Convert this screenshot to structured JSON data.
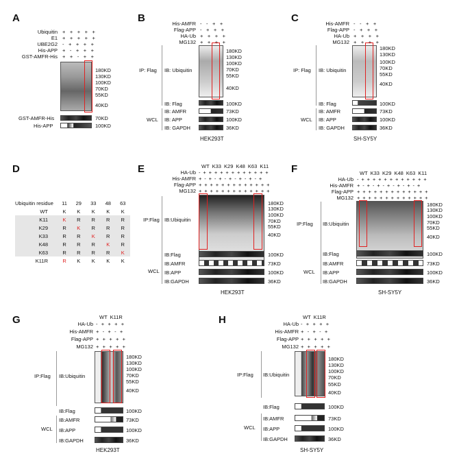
{
  "panels": {
    "A": {
      "letter": "A",
      "rows": [
        "Ubiquitin",
        "E1",
        "UBE2G2",
        "His-APP",
        "GST-AMFR-His"
      ],
      "signs": [
        "+ + + + +",
        "+ + + + +",
        "- + + + +",
        "+ - + + +",
        "+ + - + +"
      ],
      "markers": [
        "180KD",
        "130KD",
        "100KD",
        "70KD",
        "55KD",
        "40KD"
      ],
      "lower_labels": [
        "GST-AMFR-His",
        "His-APP"
      ],
      "lower_markers": [
        "70KD",
        "100KD"
      ]
    },
    "B": {
      "letter": "B",
      "rows": [
        "His-AMFR",
        "Flag-APP",
        "HA-Ub",
        "MG132"
      ],
      "signs": [
        "- - + +",
        "- + + +",
        "+ + + +",
        "+ + + +"
      ],
      "ip_label": "IP: Flag",
      "blots": [
        "IB: Ubiquitin",
        "IB: Flag",
        "IB: AMFR",
        "IB: APP",
        "IB: GAPDH"
      ],
      "wcl": "WCL",
      "markers": [
        "180KD",
        "130KD",
        "100KD",
        "70KD",
        "55KD",
        "40KD"
      ],
      "small_markers": [
        "100KD",
        "73KD",
        "100KD",
        "36KD"
      ],
      "cell": "HEK293T"
    },
    "C": {
      "letter": "C",
      "rows": [
        "His-AMFR",
        "Flag-APP",
        "HA-Ub",
        "MG132"
      ],
      "signs": [
        "- - + +",
        "- + + +",
        "+ + + +",
        "+ + + +"
      ],
      "ip_label": "IP: Flag",
      "blots": [
        "IB: Ubiquitin",
        "IB: Flag",
        "IB: AMFR",
        "IB: APP",
        "IB: GAPDH"
      ],
      "wcl": "WCL",
      "markers": [
        "180KD",
        "130KD",
        "100KD",
        "70KD",
        "55KD",
        "40KD"
      ],
      "small_markers": [
        "100KD",
        "73KD",
        "100KD",
        "36KD"
      ],
      "cell": "SH-SY5Y"
    },
    "D": {
      "letter": "D",
      "header": [
        "Ubiquitin residue",
        "11",
        "29",
        "33",
        "48",
        "63"
      ],
      "rows": [
        [
          "WT",
          "K",
          "K",
          "K",
          "K",
          "K"
        ],
        [
          "K11",
          "K",
          "R",
          "R",
          "R",
          "R"
        ],
        [
          "K29",
          "R",
          "K",
          "R",
          "R",
          "R"
        ],
        [
          "K33",
          "R",
          "R",
          "K",
          "R",
          "R"
        ],
        [
          "K48",
          "R",
          "R",
          "R",
          "K",
          "R"
        ],
        [
          "K63",
          "R",
          "R",
          "R",
          "R",
          "K"
        ],
        [
          "K11R",
          "R",
          "K",
          "K",
          "K",
          "K"
        ]
      ],
      "highlight_color": "#e02020"
    },
    "E": {
      "letter": "E",
      "top_labels": "WT K33 K29 K48 K63 K11",
      "rows": [
        "HA-Ub",
        "His-AMFR",
        "Flag-APP",
        "MG132"
      ],
      "signs": [
        "- + + + + + + + + + + + +",
        "+ - + - + - + - + - + - +",
        "+ + + + + + + + + + + + +",
        "+ + + + + + + + + + + + +"
      ],
      "ip_label": "IP:Flag",
      "blots": [
        "IB:Ubiquitin",
        "IB:Flag",
        "IB:AMFR",
        "IB:APP",
        "IB:GAPDH"
      ],
      "wcl": "WCL",
      "markers": [
        "180KD",
        "130KD",
        "100KD",
        "70KD",
        "55KD",
        "40KD"
      ],
      "small_markers": [
        "100KD",
        "73KD",
        "100KD",
        "36KD"
      ],
      "cell": "HEK293T"
    },
    "F": {
      "letter": "F",
      "top_labels": "WT K33 K29 K48 K63 K11",
      "rows": [
        "HA-Ub",
        "His-AMFR",
        "Flag-APP",
        "MG132"
      ],
      "signs": [
        "- + + + + + + + + + + + +",
        "+ - + - + - + - + - + - +",
        "+ + + + + + + + + + + + +",
        "+ + + + + + + + + + + + +"
      ],
      "ip_label": "IP:Flag",
      "blots": [
        "IB:Ubiquitin",
        "IB:Flag",
        "IB:AMFR",
        "IB:APP",
        "IB:GAPDH"
      ],
      "wcl": "WCL",
      "markers": [
        "180KD",
        "130KD",
        "100KD",
        "70KD",
        "55KD",
        "40KD"
      ],
      "small_markers": [
        "100KD",
        "73KD",
        "100KD",
        "36KD"
      ],
      "cell": "SH-SY5Y"
    },
    "G": {
      "letter": "G",
      "top_labels": "WT K11R",
      "rows": [
        "HA-Ub",
        "His-AMFR",
        "Flag-APP",
        "MG132"
      ],
      "signs": [
        "- + + + +",
        "+ - + - +",
        "+ + + + +",
        "+ + + + +"
      ],
      "ip_label": "IP:Flag",
      "blots": [
        "IB:Ubiquitin",
        "IB:Flag",
        "IB:AMFR",
        "IB:APP",
        "IB:GAPDH"
      ],
      "wcl": "WCL",
      "markers": [
        "180KD",
        "130KD",
        "100KD",
        "70KD",
        "55KD",
        "40KD"
      ],
      "small_markers": [
        "100KD",
        "73KD",
        "100KD",
        "36KD"
      ],
      "cell": "HEK293T"
    },
    "H": {
      "letter": "H",
      "top_labels": "WT K11R",
      "rows": [
        "HA-Ub",
        "His-AMFR",
        "Flag-APP",
        "MG132"
      ],
      "signs": [
        "- + + + +",
        "+ - + - +",
        "+ + + + +",
        "+ + + + +"
      ],
      "ip_label": "IP:Flag",
      "blots": [
        "IB:Ubiquitin",
        "IB:Flag",
        "IB:AMFR",
        "IB:APP",
        "IB:GAPDH"
      ],
      "wcl": "WCL",
      "markers": [
        "180KD",
        "130KD",
        "100KD",
        "70KD",
        "55KD",
        "40KD"
      ],
      "small_markers": [
        "100KD",
        "73KD",
        "100KD",
        "36KD"
      ],
      "cell": "SH-SY5Y"
    }
  }
}
